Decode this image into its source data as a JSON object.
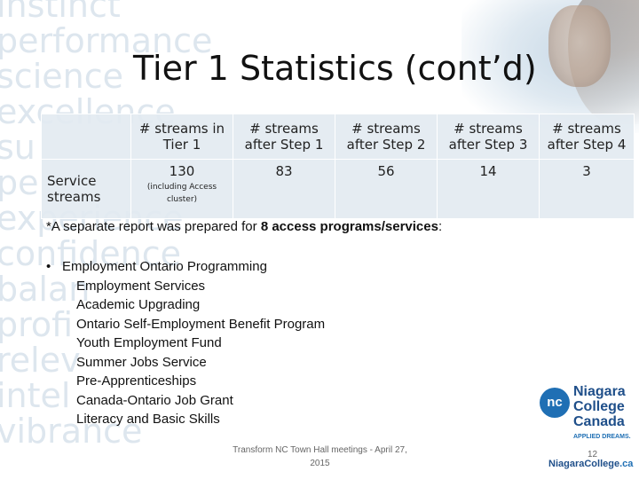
{
  "slide": {
    "title": "Tier 1 Statistics (cont’d)",
    "background_words": [
      "instinct",
      "performance",
      "science",
      "excellence",
      "su",
      "pe",
      "experience",
      "confidence",
      "balan",
      "profi",
      "relev",
      "intel",
      "vibrance"
    ]
  },
  "table": {
    "headers": [
      "# streams in Tier 1",
      "# streams after Step 1",
      "# streams after Step 2",
      "# streams after Step 3",
      "# streams after Step 4"
    ],
    "row_label": "Service streams",
    "values": [
      "130",
      "83",
      "56",
      "14",
      "3"
    ],
    "first_value_note": "(including Access cluster)"
  },
  "note": {
    "prefix": "*A separate report was prepared for ",
    "bold": "8 access programs/services",
    "suffix": ":"
  },
  "list": {
    "bullet": "•",
    "heading": "Employment Ontario Programming",
    "items": [
      "Employment Services",
      "Academic Upgrading",
      "Ontario Self-Employment Benefit Program",
      "Youth Employment Fund",
      "Summer Jobs Service",
      "Pre-Apprenticeships",
      "Canada-Ontario Job Grant",
      "Literacy and Basic Skills"
    ]
  },
  "footer": {
    "text": "Transform NC Town Hall meetings - April 27, 2015",
    "page_number": "12"
  },
  "logo": {
    "mark": "nc",
    "name_lines": [
      "Niagara",
      "College",
      "Canada"
    ],
    "tagline": "APPLIED DREAMS.",
    "url_name": "NiagaraCollege",
    "url_domain": ".ca"
  },
  "colors": {
    "table_cell": "#e2eaf1",
    "logo_blue": "#1f6fb4",
    "logo_navy": "#1f4f8a",
    "background_words": "#dde6ee"
  }
}
